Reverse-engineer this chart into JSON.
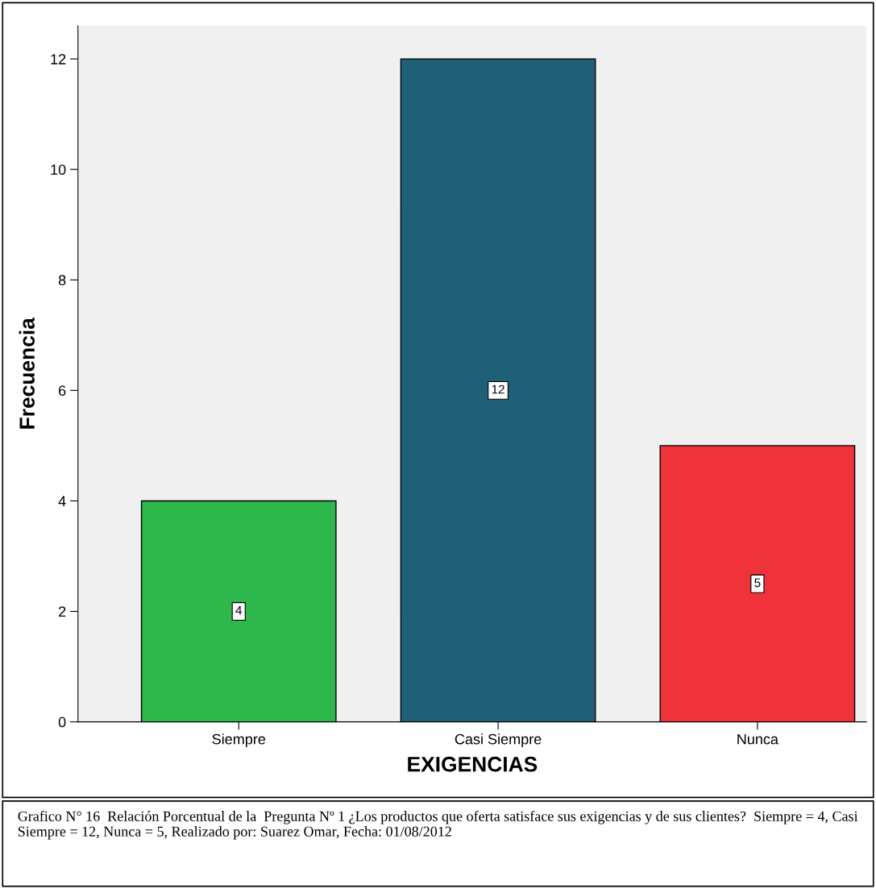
{
  "chart_data": {
    "type": "bar",
    "xlabel": "EXIGENCIAS",
    "ylabel": "Frecuencia",
    "categories": [
      "Siempre",
      "Casi Siempre",
      "Nunca"
    ],
    "values": [
      4,
      12,
      5
    ],
    "colors": [
      "#2eb84b",
      "#1f6077",
      "#f0323a"
    ],
    "ylim": [
      0,
      12.6
    ],
    "yticks": [
      0,
      2,
      4,
      6,
      8,
      10,
      12
    ],
    "grid": false,
    "data_labels": true,
    "annotations": [
      "Grafico N° 16  Relación Porcentual de la  Pregunta Nº 1 ¿Los productos que oferta satisface sus exigencias y de sus clientes?  Siempre = 4, Casi Siempre = 12, Nunca = 5, Realizado por: Suarez Omar, Fecha: 01/08/2012"
    ]
  }
}
